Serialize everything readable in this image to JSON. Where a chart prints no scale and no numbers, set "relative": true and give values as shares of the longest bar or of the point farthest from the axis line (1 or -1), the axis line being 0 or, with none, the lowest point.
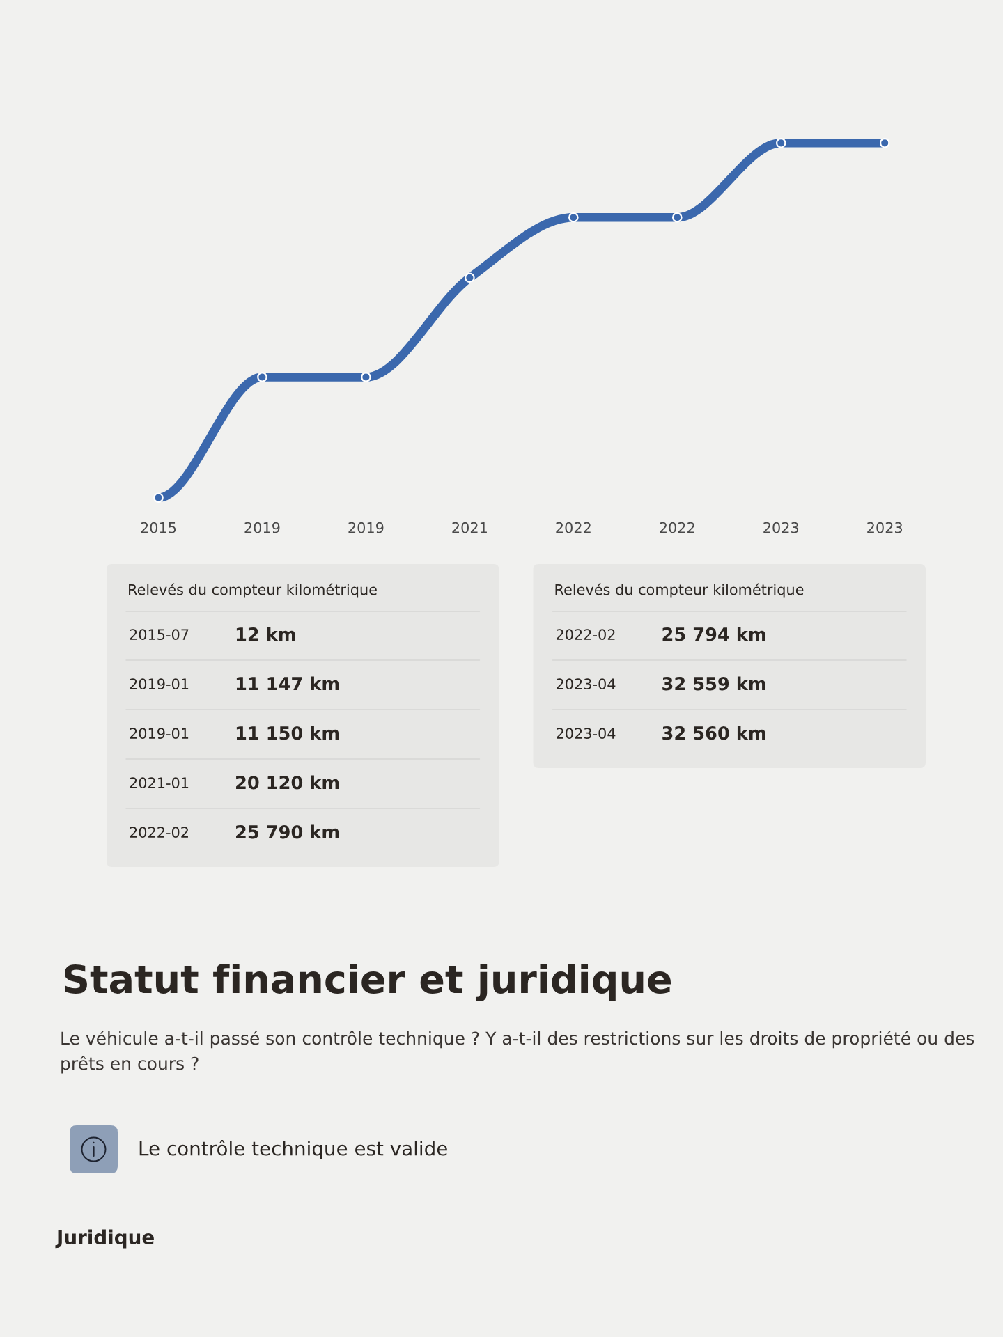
{
  "chart_data": [
    {
      "type": "line",
      "relative": true,
      "categories": [
        "2015",
        "2019",
        "2019",
        "2021",
        "2022",
        "2022",
        "2023",
        "2023"
      ],
      "values": [
        0,
        0.34,
        0.34,
        0.62,
        0.79,
        0.79,
        1,
        1
      ],
      "color": "#3b68ad",
      "marker": "circle",
      "tick_labels": "x"
    },
    {
      "type": "other",
      "title": "Relevés du compteur kilométrique",
      "annotations": [
        "2015-07",
        "12 km",
        "2019-01",
        "11 147 km",
        "2019-01",
        "11 150 km",
        "2021-01",
        "20 120 km",
        "2022-02",
        "25 790 km"
      ]
    },
    {
      "type": "other",
      "title": "Relevés du compteur kilométrique",
      "annotations": [
        "2022-02",
        "25 794 km",
        "2023-04",
        "32 559 km",
        "2023-04",
        "32 560 km"
      ]
    },
    {
      "type": "other",
      "title": "Statut financier et juridique",
      "subtitle": "Le véhicule a-t-il passé son contrôle technique ? Y a-t-il des restrictions sur les droits de propriété ou des prêts en cours ?",
      "annotations": [
        "Le contrôle technique est valide",
        "Juridique"
      ]
    }
  ]
}
